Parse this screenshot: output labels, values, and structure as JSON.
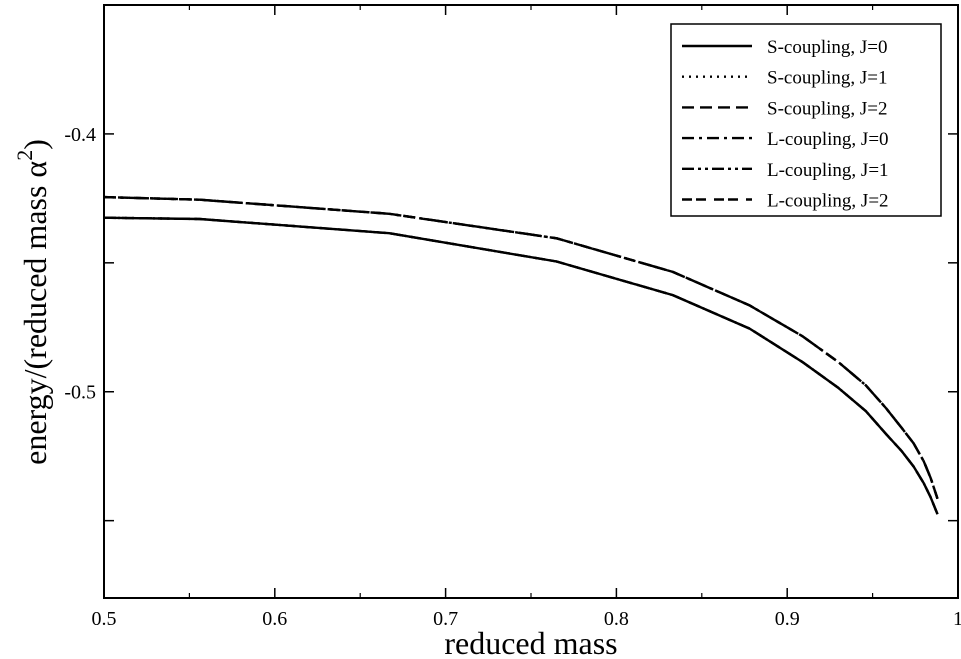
{
  "chart_data": {
    "type": "line",
    "xlabel": "reduced mass",
    "ylabel_prefix": "energy/(reduced mass ",
    "ylabel_symbol": "α",
    "ylabel_exponent": "2",
    "ylabel_suffix": ")",
    "xlim": [
      0.5,
      1.0
    ],
    "ylim": [
      -0.58,
      -0.35
    ],
    "x_ticks": [
      0.5,
      0.6,
      0.7,
      0.8,
      0.9,
      1.0
    ],
    "x_tick_labels": [
      "0.5",
      "0.6",
      "0.7",
      "0.8",
      "0.9",
      "1"
    ],
    "y_ticks": [
      -0.55,
      -0.5,
      -0.45,
      -0.4
    ],
    "y_tick_labels": [
      "",
      "-0.5",
      "",
      "-0.4"
    ],
    "grid": false,
    "legend_position": "top-right",
    "series": [
      {
        "name": "S-coupling, J=0",
        "dash": "solid",
        "x": [
          0.5,
          0.556,
          0.667,
          0.765,
          0.833,
          0.878,
          0.909,
          0.93,
          0.946,
          0.958,
          0.967,
          0.974,
          0.98,
          0.984,
          0.988
        ],
        "y": [
          -0.4325,
          -0.433,
          -0.4385,
          -0.4495,
          -0.4625,
          -0.4755,
          -0.4885,
          -0.4985,
          -0.5075,
          -0.5165,
          -0.523,
          -0.529,
          -0.5355,
          -0.541,
          -0.5475
        ]
      },
      {
        "name": "S-coupling, J=1",
        "dash": "dotted",
        "x": [
          0.5,
          0.556,
          0.667,
          0.765,
          0.833,
          0.878,
          0.909,
          0.93,
          0.946,
          0.958,
          0.967,
          0.974,
          0.98,
          0.984,
          0.988
        ],
        "y": [
          -0.4325,
          -0.433,
          -0.4385,
          -0.4495,
          -0.4625,
          -0.4755,
          -0.4885,
          -0.4985,
          -0.5075,
          -0.5165,
          -0.523,
          -0.529,
          -0.5355,
          -0.541,
          -0.5475
        ]
      },
      {
        "name": "S-coupling, J=2",
        "dash": "dashed",
        "x": [
          0.5,
          0.556,
          0.667,
          0.765,
          0.833,
          0.878,
          0.909,
          0.93,
          0.946,
          0.958,
          0.967,
          0.974,
          0.98,
          0.984,
          0.988
        ],
        "y": [
          -0.4325,
          -0.433,
          -0.4385,
          -0.4495,
          -0.4625,
          -0.4755,
          -0.4885,
          -0.4985,
          -0.5075,
          -0.5165,
          -0.523,
          -0.529,
          -0.5355,
          -0.541,
          -0.5475
        ]
      },
      {
        "name": "L-coupling, J=0",
        "dash": "dashdot",
        "x": [
          0.5,
          0.556,
          0.667,
          0.765,
          0.833,
          0.878,
          0.909,
          0.93,
          0.946,
          0.958,
          0.967,
          0.974,
          0.98,
          0.984,
          0.988
        ],
        "y": [
          -0.4245,
          -0.4255,
          -0.431,
          -0.4405,
          -0.4535,
          -0.4665,
          -0.4785,
          -0.4885,
          -0.4975,
          -0.5065,
          -0.514,
          -0.52,
          -0.527,
          -0.5335,
          -0.5415
        ]
      },
      {
        "name": "L-coupling, J=1",
        "dash": "dashdotdot",
        "x": [
          0.5,
          0.556,
          0.667,
          0.765,
          0.833,
          0.878,
          0.909,
          0.93,
          0.946,
          0.958,
          0.967,
          0.974,
          0.98,
          0.984,
          0.988
        ],
        "y": [
          -0.4245,
          -0.4255,
          -0.431,
          -0.4405,
          -0.4535,
          -0.4665,
          -0.4785,
          -0.4885,
          -0.4975,
          -0.5065,
          -0.514,
          -0.52,
          -0.527,
          -0.5335,
          -0.5415
        ]
      },
      {
        "name": "L-coupling, J=2",
        "dash": "dashdash",
        "x": [
          0.5,
          0.556,
          0.667,
          0.765,
          0.833,
          0.878,
          0.909,
          0.93,
          0.946,
          0.958,
          0.967,
          0.974,
          0.98,
          0.984,
          0.988
        ],
        "y": [
          -0.4245,
          -0.4255,
          -0.431,
          -0.4405,
          -0.4535,
          -0.4665,
          -0.4785,
          -0.4885,
          -0.4975,
          -0.5065,
          -0.514,
          -0.52,
          -0.527,
          -0.5335,
          -0.5415
        ]
      }
    ]
  }
}
